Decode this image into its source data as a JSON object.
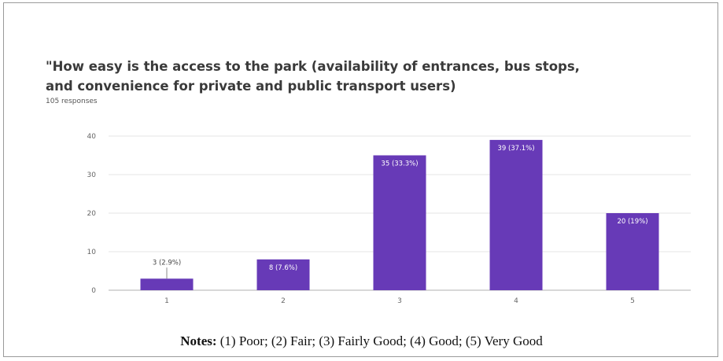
{
  "chart_data": {
    "type": "bar",
    "title": "\"How easy is the access to the park (availability of entrances, bus stops, and convenience for private and public transport users)",
    "subtitle": "105 responses",
    "categories": [
      "1",
      "2",
      "3",
      "4",
      "5"
    ],
    "values": [
      3,
      8,
      35,
      39,
      20
    ],
    "data_labels": [
      "3 (2.9%)",
      "8 (7.6%)",
      "35 (33.3%)",
      "39 (37.1%)",
      "20 (19%)"
    ],
    "yticks": [
      0,
      10,
      20,
      30,
      40
    ],
    "ylim": [
      0,
      40
    ],
    "xlabel": "",
    "ylabel": "",
    "grid": true,
    "bar_color": "#673ab7"
  },
  "notes": {
    "label": "Notes:",
    "text": "(1) Poor; (2) Fair; (3) Fairly Good; (4) Good; (5) Very Good"
  }
}
